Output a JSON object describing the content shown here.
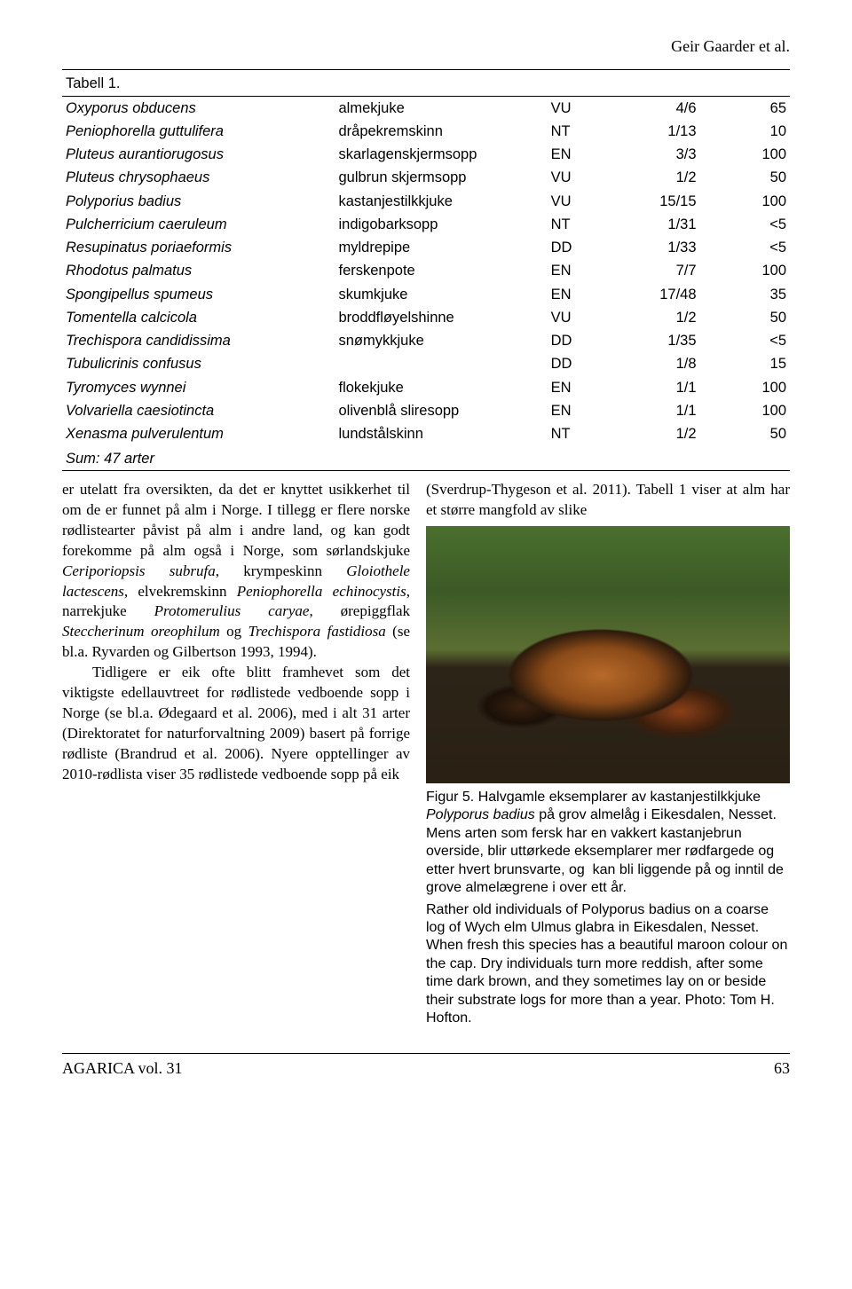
{
  "header": {
    "author_line": "Geir Gaarder et al."
  },
  "table": {
    "caption": "Tabell 1.",
    "rows": [
      {
        "sci": "Oxyporus obducens",
        "name": "almekjuke",
        "code": "VU",
        "frac": "4/6",
        "pct": "65"
      },
      {
        "sci": "Peniophorella guttulifera",
        "name": "dråpekremskinn",
        "code": "NT",
        "frac": "1/13",
        "pct": "10"
      },
      {
        "sci": "Pluteus aurantiorugosus",
        "name": "skarlagenskjermsopp",
        "code": "EN",
        "frac": "3/3",
        "pct": "100"
      },
      {
        "sci": "Pluteus chrysophaeus",
        "name": "gulbrun skjermsopp",
        "code": "VU",
        "frac": "1/2",
        "pct": "50"
      },
      {
        "sci": "Polyporius badius",
        "name": "kastanjestilkkjuke",
        "code": "VU",
        "frac": "15/15",
        "pct": "100"
      },
      {
        "sci": "Pulcherricium caeruleum",
        "name": "indigobarksopp",
        "code": "NT",
        "frac": "1/31",
        "pct": "<5"
      },
      {
        "sci": "Resupinatus poriaeformis",
        "name": "myldrepipe",
        "code": "DD",
        "frac": "1/33",
        "pct": "<5"
      },
      {
        "sci": "Rhodotus palmatus",
        "name": "ferskenpote",
        "code": "EN",
        "frac": "7/7",
        "pct": "100"
      },
      {
        "sci": "Spongipellus spumeus",
        "name": "skumkjuke",
        "code": "EN",
        "frac": "17/48",
        "pct": "35"
      },
      {
        "sci": "Tomentella calcicola",
        "name": "broddfløyelshinne",
        "code": "VU",
        "frac": "1/2",
        "pct": "50"
      },
      {
        "sci": "Trechispora candidissima",
        "name": "snømykkjuke",
        "code": "DD",
        "frac": "1/35",
        "pct": "<5"
      },
      {
        "sci": "Tubulicrinis confusus",
        "name": "",
        "code": "DD",
        "frac": "1/8",
        "pct": "15"
      },
      {
        "sci": "Tyromyces wynnei",
        "name": "flokekjuke",
        "code": "EN",
        "frac": "1/1",
        "pct": "100"
      },
      {
        "sci": "Volvariella caesiotincta",
        "name": "olivenblå sliresopp",
        "code": "EN",
        "frac": "1/1",
        "pct": "100"
      },
      {
        "sci": "Xenasma pulverulentum",
        "name": "lundstålskinn",
        "code": "NT",
        "frac": "1/2",
        "pct": "50"
      }
    ],
    "sum": "Sum: 47 arter"
  },
  "body": {
    "p1a": "er utelatt fra oversikten, da det er knyttet usikkerhet til om de er funnet på alm i Norge. I tillegg er flere norske rødlistearter påvist på alm i andre land, og kan godt forekomme på alm også i Norge, som sørlandskjuke ",
    "sp1": "Ceriporiopsis subrufa",
    "p1b": ", krympeskinn ",
    "sp2": "Gloiothele lactescens",
    "p1c": ", elvekremskinn ",
    "sp3": "Peniophorella echinocystis",
    "p1d": ", narrekjuke ",
    "sp4": "Protomerulius caryae",
    "p1e": ", ørepiggflak ",
    "sp5": "Steccherinum oreophilum",
    "p1f": " og ",
    "sp6": "Trechispora fastidiosa",
    "p1g": " (se bl.a. Ryvarden og Gilbertson 1993, 1994).",
    "p2": "Tidligere er eik ofte blitt framhevet som det viktigste edellauvtreet for rødlistede vedboende sopp i Norge (se bl.a. Ødegaard et al. 2006), med i alt 31 arter (Direktoratet for naturforvaltning 2009) basert på forrige rødliste (Brandrud et al. 2006). Nyere opptellinger av 2010-rødlista viser 35 rødlistede vedboende sopp på eik",
    "right_intro": "(Sverdrup-Thygeson et al. 2011). Tabell 1 viser at alm har et større mangfold av slike"
  },
  "figure": {
    "cap_no_a": "Figur 5. Halvgamle eksemplarer av kastanjestilkkjuke ",
    "cap_no_sp": "Polyporus badius",
    "cap_no_b": " på grov almelåg i Eikesdalen, Nesset. Mens arten som fersk har en vakkert kastanjebrun overside, blir uttørkede eksemplarer mer rødfargede og etter hvert brunsvarte, og  kan bli liggende på og inntil de grove almelægrene i over ett år.",
    "cap_en_a": "Rather old individuals of ",
    "cap_en_sp1": "Polyporus badius ",
    "cap_en_b": "on a coarse log of Wych elm ",
    "cap_en_sp2": "Ulmus glabra ",
    "cap_en_c": "in Eikesdalen, Nesset. When fresh this species has a beautiful maroon colour on the cap. Dry individuals turn more reddish, after some time dark brown, and they sometimes lay on or beside their substrate logs for more than a year. Photo: Tom H. Hofton."
  },
  "footer": {
    "journal": "AGARICA vol. 31",
    "page": "63"
  }
}
